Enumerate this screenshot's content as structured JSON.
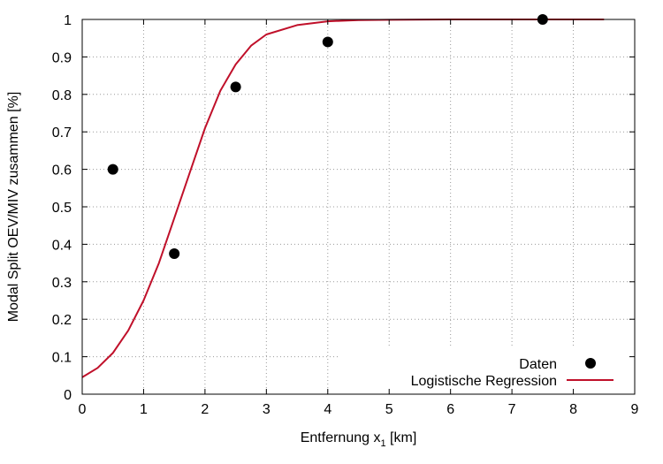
{
  "chart_data": {
    "type": "scatter",
    "title": "",
    "xlabel": "Entfernung x",
    "xlabel_subscript": "1",
    "xlabel_suffix": " [km]",
    "ylabel": "Modal Split OEV/MIV zusammen [%]",
    "xlim": [
      0,
      9
    ],
    "ylim": [
      0,
      1
    ],
    "x_ticks": [
      0,
      1,
      2,
      3,
      4,
      5,
      6,
      7,
      8,
      9
    ],
    "x_tick_labels": [
      "0",
      "1",
      "2",
      "3",
      "4",
      "5",
      "6",
      "7",
      "8",
      "9"
    ],
    "y_ticks": [
      0,
      0.1,
      0.2,
      0.3,
      0.4,
      0.5,
      0.6,
      0.7,
      0.8,
      0.9,
      1
    ],
    "y_tick_labels": [
      "0",
      "0.1",
      "0.2",
      "0.3",
      "0.4",
      "0.5",
      "0.6",
      "0.7",
      "0.8",
      "0.9",
      "1"
    ],
    "grid": true,
    "legend_position": "bottom-right",
    "series": [
      {
        "name": "Daten",
        "kind": "points",
        "color": "#000000",
        "x": [
          0.5,
          1.5,
          2.5,
          4.0,
          7.5
        ],
        "y": [
          0.6,
          0.375,
          0.82,
          0.94,
          1.0
        ]
      },
      {
        "name": "Logistische Regression",
        "kind": "line",
        "color": "#c0102a",
        "x": [
          0,
          0.25,
          0.5,
          0.75,
          1.0,
          1.25,
          1.5,
          1.75,
          2.0,
          2.25,
          2.5,
          2.75,
          3.0,
          3.5,
          4.0,
          4.5,
          5.0,
          6.0,
          7.0,
          8.0,
          8.5
        ],
        "y": [
          0.045,
          0.07,
          0.11,
          0.17,
          0.25,
          0.35,
          0.47,
          0.59,
          0.71,
          0.81,
          0.88,
          0.93,
          0.96,
          0.985,
          0.995,
          0.998,
          0.999,
          1.0,
          1.0,
          1.0,
          1.0
        ]
      }
    ]
  }
}
